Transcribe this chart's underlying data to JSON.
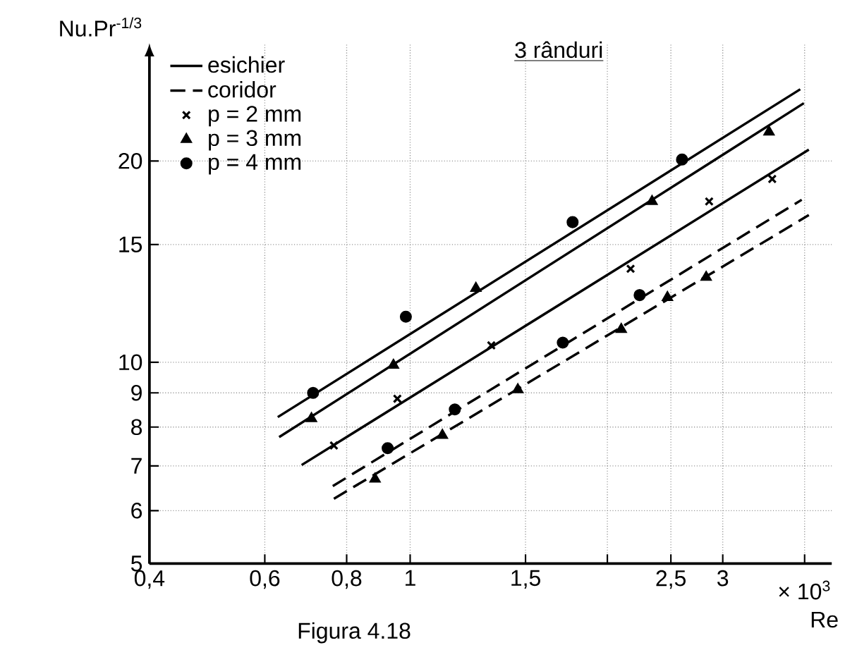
{
  "chart_data": {
    "type": "scatter",
    "title": "3 rânduri",
    "xlabel": "Re",
    "ylabel": "Nu.Pr$^{-1/3}$",
    "annotations": [
      "× 10$^{3}$",
      "Figura 4.18"
    ],
    "log": "xy",
    "grid": true,
    "legend": "top left",
    "xlim": [
      0.4,
      4.4
    ],
    "ylim": [
      5,
      30
    ],
    "xticks": [
      {
        "value": 0.4,
        "label": "0,4"
      },
      {
        "value": 0.6,
        "label": "0,6"
      },
      {
        "value": 0.8,
        "label": "0,8"
      },
      1,
      {
        "value": 1.5,
        "label": "1,5"
      },
      {
        "value": 2,
        "label": null
      },
      {
        "value": 2.5,
        "label": "2,5"
      },
      3,
      {
        "value": 4,
        "label": null
      }
    ],
    "yticks": [
      5,
      6,
      7,
      8,
      9,
      10,
      15,
      20
    ],
    "series": [
      {
        "name": "esichier",
        "type": "line",
        "line_style": "solid",
        "marker": "none",
        "color": "#000000",
        "x": [
          0.628,
          3.94
        ],
        "values": [
          8.28,
          25.6
        ]
      },
      {
        "name": "coridor",
        "type": "line",
        "line_style": "dashed",
        "marker": "none",
        "color": "#000000",
        "x": [
          0.762,
          3.96
        ],
        "values": [
          6.53,
          17.5
        ]
      },
      {
        "name": "p = 2 mm",
        "marker": "cross",
        "color": "#000000",
        "x": [
          0.765,
          0.956,
          1.33,
          2.17,
          2.86,
          3.57
        ],
        "values": [
          7.51,
          8.82,
          10.6,
          13.8,
          17.4,
          18.8
        ]
      },
      {
        "name": "p = 3 mm",
        "marker": "triangle",
        "color": "#000000",
        "x": [
          0.707,
          0.943,
          1.26,
          2.34,
          3.53
        ],
        "values": [
          8.24,
          9.9,
          12.9,
          17.4,
          22.1
        ]
      },
      {
        "name": "p = 4 mm",
        "marker": "circle",
        "color": "#000000",
        "x": [
          0.711,
          0.985,
          1.77,
          2.6
        ],
        "values": [
          9.0,
          11.7,
          16.2,
          20.1
        ]
      },
      {
        "type": "line",
        "line_style": "solid",
        "marker": "none",
        "color": "#000000",
        "x": [
          0.631,
          3.99
        ],
        "values": [
          7.73,
          24.4
        ]
      },
      {
        "type": "line",
        "line_style": "solid",
        "marker": "none",
        "color": "#000000",
        "x": [
          0.683,
          4.06
        ],
        "values": [
          7.02,
          20.8
        ]
      },
      {
        "type": "line",
        "line_style": "dashed",
        "marker": "none",
        "color": "#000000",
        "x": [
          0.765,
          4.06
        ],
        "values": [
          6.25,
          16.6
        ]
      },
      {
        "marker": "circle",
        "color": "#000000",
        "x": [
          0.924,
          1.17,
          1.71,
          2.24
        ],
        "values": [
          7.44,
          8.5,
          10.7,
          12.6
        ]
      },
      {
        "marker": "triangle",
        "color": "#000000",
        "x": [
          0.884,
          1.12,
          1.46,
          2.1,
          2.47,
          2.83
        ],
        "values": [
          6.69,
          7.78,
          9.1,
          11.2,
          12.5,
          13.4
        ]
      }
    ]
  }
}
